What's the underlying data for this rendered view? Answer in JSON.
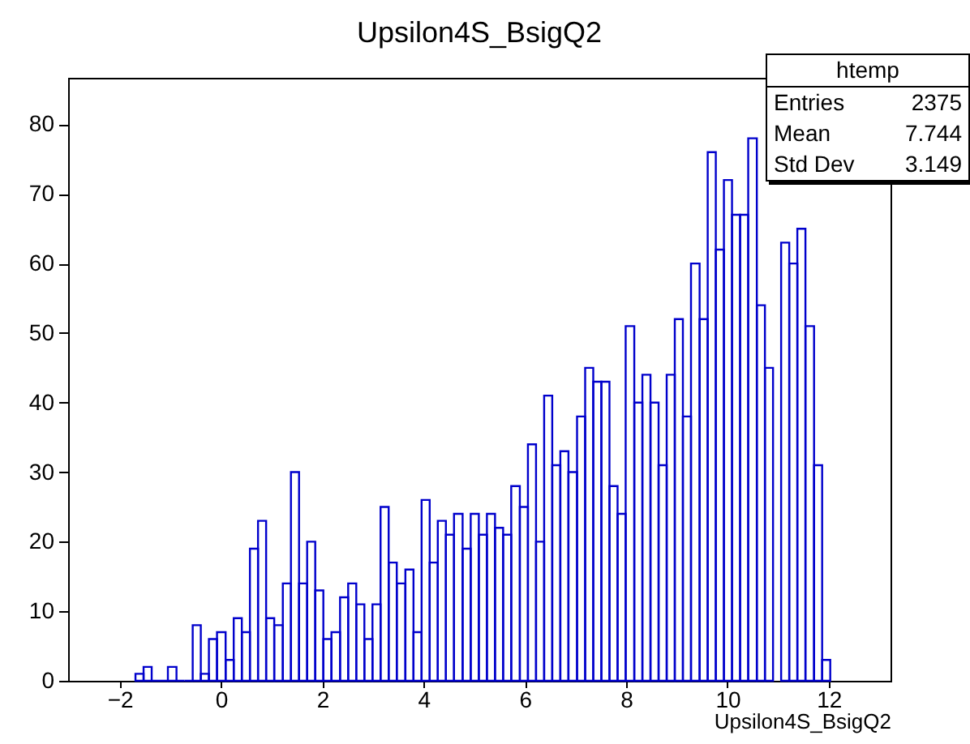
{
  "chart_data": {
    "type": "histogram",
    "title": "Upsilon4S_BsigQ2",
    "xlabel": "Upsilon4S_BsigQ2",
    "bins": [
      -1.69,
      -1.53,
      -1.37,
      -1.21,
      -1.05,
      -0.88,
      -0.72,
      -0.56,
      -0.4,
      -0.24,
      -0.08,
      0.09,
      0.25,
      0.41,
      0.57,
      0.73,
      0.89,
      1.05,
      1.22,
      1.38,
      1.54,
      1.7,
      1.86,
      2.02,
      2.18,
      2.35,
      2.51,
      2.67,
      2.83,
      2.99,
      3.15,
      3.31,
      3.47,
      3.64,
      3.8,
      3.96,
      4.12,
      4.28,
      4.44,
      4.6,
      4.77,
      4.93,
      5.09,
      5.25,
      5.41,
      5.57,
      5.73,
      5.9,
      6.06,
      6.22,
      6.38,
      6.54,
      6.7,
      6.86,
      7.03,
      7.19,
      7.35,
      7.51,
      7.67,
      7.83,
      7.99,
      8.16,
      8.32,
      8.48,
      8.64,
      8.8,
      8.96,
      9.12,
      9.28,
      9.45,
      9.61,
      9.77,
      9.93,
      10.09,
      10.25,
      10.41,
      10.58,
      10.74,
      10.9,
      11.06,
      11.22,
      11.38,
      11.54,
      11.71,
      11.87,
      12.03
    ],
    "values": [
      1,
      2,
      0,
      0,
      2,
      0,
      0,
      8,
      1,
      6,
      7,
      3,
      9,
      7,
      19,
      23,
      9,
      8,
      14,
      30,
      14,
      20,
      13,
      6,
      7,
      12,
      14,
      11,
      6,
      11,
      25,
      17,
      14,
      16,
      7,
      26,
      17,
      23,
      21,
      24,
      19,
      24,
      21,
      24,
      22,
      21,
      28,
      25,
      34,
      20,
      41,
      31,
      33,
      30,
      38,
      45,
      43,
      43,
      28,
      24,
      51,
      40,
      44,
      40,
      31,
      44,
      52,
      38,
      60,
      52,
      76,
      62,
      72,
      67,
      67,
      78,
      54,
      45,
      null,
      63,
      60,
      65,
      51,
      31,
      3
    ],
    "color": "#0000cc",
    "xlim": [
      -3.02,
      13.22
    ],
    "xticks": [
      -2,
      0,
      2,
      4,
      6,
      8,
      10,
      12
    ],
    "ylim": [
      0,
      86.7
    ],
    "yticks": [
      0,
      10,
      20,
      30,
      40,
      50,
      60,
      70,
      80
    ],
    "grid": false,
    "annotations": [
      "htemp",
      "Entries",
      "2375",
      "Mean",
      "7.744",
      "Std Dev",
      "3.149"
    ]
  }
}
